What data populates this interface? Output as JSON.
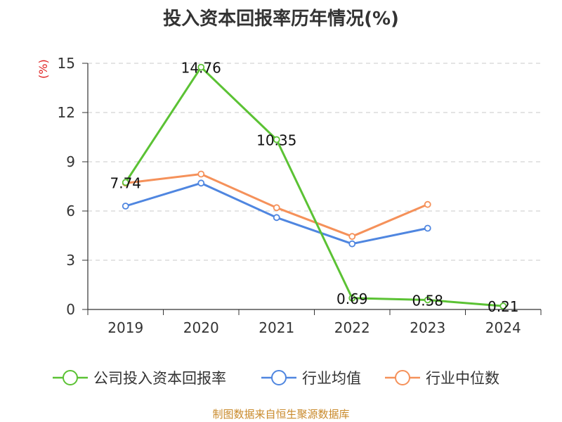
{
  "chart_data": {
    "type": "line",
    "title": "投入资本回报率历年情况(%)",
    "ylabel": "(%)",
    "xlabel": "",
    "categories": [
      "2019",
      "2020",
      "2021",
      "2022",
      "2023",
      "2024"
    ],
    "ylim": [
      0,
      15
    ],
    "yticks": [
      0,
      3,
      6,
      9,
      12,
      15
    ],
    "grid": true,
    "legend_position": "bottom",
    "series": [
      {
        "name": "公司投入资本回报率",
        "color": "#5bc234",
        "values": [
          7.74,
          14.76,
          10.35,
          0.69,
          0.58,
          0.21
        ],
        "labels": [
          "7.74",
          "14.76",
          "10.35",
          "0.69",
          "0.58",
          "0.21"
        ]
      },
      {
        "name": "行业均值",
        "color": "#4f86e0",
        "values": [
          6.3,
          7.7,
          5.6,
          4.0,
          4.95,
          null
        ]
      },
      {
        "name": "行业中位数",
        "color": "#f5915a",
        "values": [
          7.7,
          8.25,
          6.2,
          4.45,
          6.4,
          null
        ]
      }
    ]
  },
  "footer": {
    "source": "制图数据来自恒生聚源数据库"
  }
}
